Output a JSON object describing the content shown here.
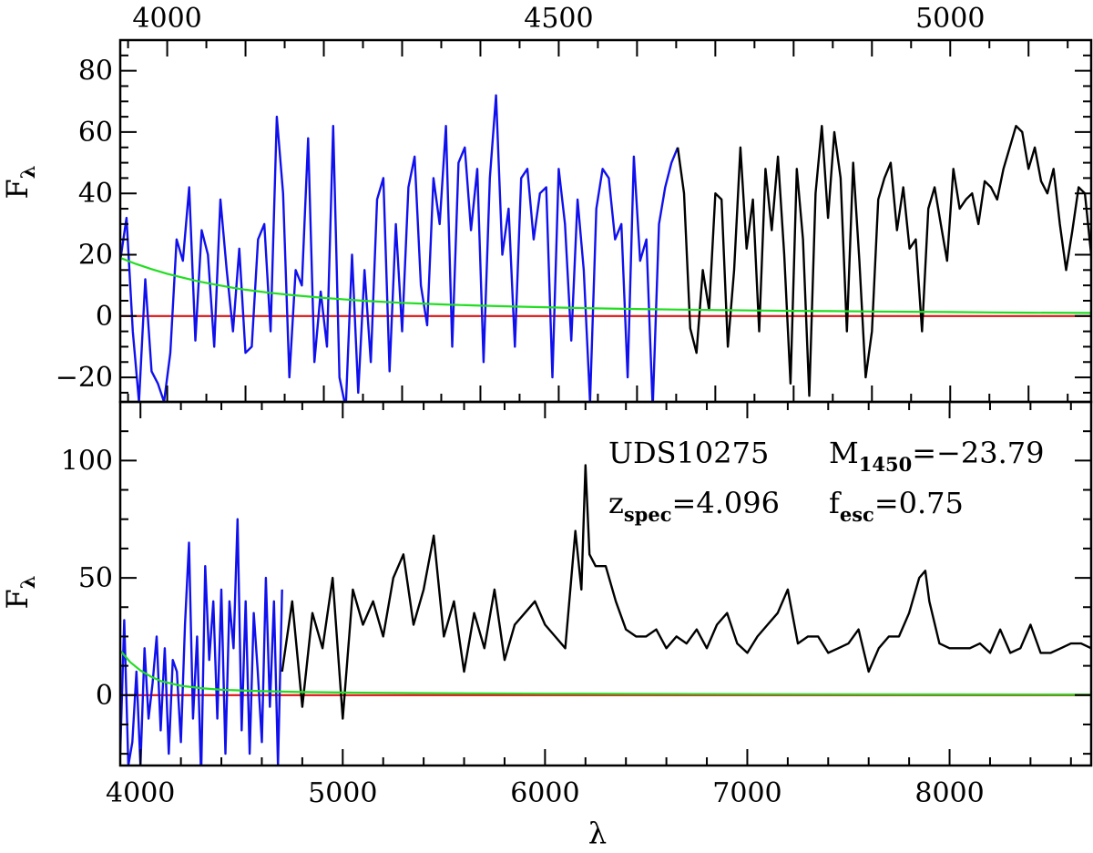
{
  "chart_data": [
    {
      "type": "line",
      "panel": "top",
      "ylabel": "F",
      "ylabel_sub": "λ",
      "xlim": [
        3940,
        5180
      ],
      "ylim": [
        -28,
        90
      ],
      "top_axis_ticks": [
        4000,
        4500,
        5000
      ],
      "y_ticks": [
        -20,
        0,
        20,
        40,
        60,
        80
      ],
      "y_tick_labels": [
        "−20",
        "0",
        "20",
        "40",
        "60",
        "80"
      ],
      "colors": {
        "blue_segment": "#1010ee",
        "black_segment": "#000000",
        "zero_line": "#e01010",
        "model_line": "#22dd22"
      },
      "series": [
        {
          "color": "blue",
          "x": [
            3940,
            3948,
            3956,
            3964,
            3972,
            3980,
            3988,
            3996,
            4004,
            4012,
            4020,
            4028,
            4036,
            4044,
            4052,
            4060,
            4068,
            4076,
            4084,
            4092,
            4100,
            4108,
            4116,
            4124,
            4132,
            4140,
            4148,
            4156,
            4164,
            4172,
            4180,
            4188,
            4196,
            4204,
            4212,
            4220,
            4228,
            4236,
            4244,
            4252,
            4260,
            4268,
            4276,
            4284,
            4292,
            4300,
            4308,
            4316,
            4324,
            4332,
            4340,
            4348,
            4356,
            4364,
            4372,
            4380,
            4388,
            4396,
            4404,
            4412,
            4420,
            4428,
            4436,
            4444,
            4452,
            4460,
            4468,
            4476,
            4484,
            4492,
            4500,
            4508,
            4516,
            4524,
            4532,
            4540,
            4548,
            4556,
            4564,
            4572,
            4580,
            4588,
            4596,
            4604,
            4612,
            4620,
            4628,
            4636,
            4644,
            4652
          ],
          "values": [
            18,
            32,
            -5,
            -28,
            12,
            -18,
            -22,
            -28,
            -12,
            25,
            18,
            42,
            -8,
            28,
            20,
            -10,
            38,
            15,
            -5,
            22,
            -12,
            -10,
            25,
            30,
            -5,
            65,
            40,
            -20,
            15,
            10,
            58,
            -15,
            8,
            -10,
            62,
            -20,
            -30,
            20,
            -25,
            15,
            -15,
            38,
            45,
            -18,
            30,
            -5,
            42,
            52,
            10,
            -3,
            45,
            30,
            62,
            -10,
            50,
            55,
            28,
            48,
            -15,
            45,
            72,
            20,
            35,
            -10,
            45,
            48,
            25,
            40,
            42,
            -20,
            48,
            30,
            -8,
            38,
            15,
            -28,
            35,
            48,
            45,
            25,
            30,
            -20,
            52,
            18,
            25,
            -30,
            30,
            42,
            50,
            55
          ]
        },
        {
          "color": "black",
          "x": [
            4652,
            4660,
            4668,
            4676,
            4684,
            4692,
            4700,
            4708,
            4716,
            4724,
            4732,
            4740,
            4748,
            4756,
            4764,
            4772,
            4780,
            4788,
            4796,
            4804,
            4812,
            4820,
            4828,
            4836,
            4844,
            4852,
            4860,
            4868,
            4876,
            4884,
            4892,
            4900,
            4908,
            4916,
            4924,
            4932,
            4940,
            4948,
            4956,
            4964,
            4972,
            4980,
            4988,
            4996,
            5004,
            5012,
            5020,
            5028,
            5036,
            5044,
            5052,
            5060,
            5068,
            5076,
            5084,
            5092,
            5100,
            5108,
            5116,
            5124,
            5132,
            5140,
            5148,
            5156,
            5164,
            5172,
            5180
          ],
          "values": [
            55,
            40,
            -4,
            -12,
            15,
            2,
            40,
            38,
            -10,
            15,
            55,
            22,
            38,
            -5,
            48,
            28,
            52,
            20,
            -22,
            48,
            25,
            -26,
            40,
            62,
            32,
            60,
            45,
            -5,
            50,
            18,
            -20,
            -5,
            38,
            45,
            50,
            28,
            42,
            22,
            25,
            -5,
            35,
            42,
            30,
            18,
            48,
            35,
            38,
            40,
            30,
            44,
            42,
            38,
            48,
            55,
            62,
            60,
            48,
            55,
            44,
            40,
            48,
            30,
            15,
            28,
            42,
            40,
            20
          ]
        },
        {
          "color": "green",
          "x": [
            3940,
            3960,
            3980,
            4000,
            4020,
            4040,
            4060,
            4080,
            4100,
            4130,
            4160,
            4200,
            4250,
            4300,
            4350,
            4400,
            4450,
            4500,
            4550,
            4600,
            4650,
            4700,
            4750,
            4800,
            4850,
            4900,
            4950,
            5000,
            5050,
            5100,
            5180
          ],
          "values": [
            19,
            17,
            15.3,
            13.8,
            12.5,
            11.3,
            10.3,
            9.4,
            8.6,
            7.6,
            6.8,
            5.9,
            5.0,
            4.3,
            3.8,
            3.4,
            3.05,
            2.75,
            2.5,
            2.3,
            2.1,
            1.95,
            1.8,
            1.7,
            1.6,
            1.5,
            1.4,
            1.3,
            1.2,
            1.1,
            1.0
          ]
        },
        {
          "color": "red",
          "x": [
            3940,
            5180
          ],
          "values": [
            0,
            0
          ]
        }
      ]
    },
    {
      "type": "line",
      "panel": "bottom",
      "xlabel": "λ",
      "ylabel": "F",
      "ylabel_sub": "λ",
      "xlim": [
        3900,
        8700
      ],
      "ylim": [
        -30,
        125
      ],
      "x_ticks": [
        4000,
        5000,
        6000,
        7000,
        8000
      ],
      "y_ticks": [
        0,
        50,
        100
      ],
      "annotations": {
        "name": "UDS10275",
        "mag_main": "M",
        "mag_sub": "1450",
        "mag_value": "=−23.79",
        "z_main": "z",
        "z_sub": "spec",
        "z_value": "=4.096",
        "f_main": "f",
        "f_sub": "esc",
        "f_value": "=0.75"
      },
      "series": [
        {
          "color": "blue",
          "x": [
            3900,
            3920,
            3940,
            3960,
            3980,
            4000,
            4020,
            4040,
            4060,
            4080,
            4100,
            4120,
            4140,
            4160,
            4180,
            4200,
            4220,
            4240,
            4260,
            4280,
            4300,
            4320,
            4340,
            4360,
            4380,
            4400,
            4420,
            4440,
            4460,
            4480,
            4500,
            4520,
            4540,
            4560,
            4580,
            4600,
            4620,
            4640,
            4660,
            4680,
            4700
          ],
          "values": [
            -25,
            32,
            -30,
            -20,
            10,
            -30,
            20,
            -10,
            5,
            25,
            -15,
            20,
            -25,
            15,
            10,
            -20,
            30,
            65,
            -10,
            25,
            -35,
            55,
            15,
            40,
            -10,
            45,
            -25,
            40,
            20,
            75,
            -15,
            40,
            -25,
            35,
            10,
            -20,
            50,
            -5,
            40,
            -30,
            45
          ]
        },
        {
          "color": "black",
          "x": [
            4700,
            4750,
            4800,
            4850,
            4900,
            4950,
            5000,
            5050,
            5100,
            5150,
            5200,
            5250,
            5300,
            5350,
            5400,
            5450,
            5500,
            5550,
            5600,
            5650,
            5700,
            5750,
            5800,
            5850,
            5900,
            5950,
            6000,
            6050,
            6100,
            6150,
            6180,
            6200,
            6220,
            6250,
            6300,
            6350,
            6400,
            6450,
            6500,
            6550,
            6600,
            6650,
            6700,
            6750,
            6800,
            6850,
            6900,
            6950,
            7000,
            7050,
            7100,
            7150,
            7200,
            7250,
            7300,
            7350,
            7400,
            7450,
            7500,
            7550,
            7600,
            7650,
            7700,
            7750,
            7800,
            7850,
            7880,
            7900,
            7950,
            8000,
            8050,
            8100,
            8150,
            8200,
            8250,
            8300,
            8350,
            8400,
            8450,
            8500,
            8550,
            8600,
            8650,
            8700
          ],
          "values": [
            10,
            40,
            -5,
            35,
            20,
            50,
            -10,
            45,
            30,
            40,
            25,
            50,
            60,
            30,
            45,
            68,
            25,
            40,
            10,
            35,
            20,
            45,
            15,
            30,
            35,
            40,
            30,
            25,
            20,
            70,
            45,
            98,
            60,
            55,
            55,
            40,
            28,
            25,
            25,
            28,
            20,
            25,
            22,
            28,
            20,
            30,
            35,
            22,
            18,
            25,
            30,
            35,
            45,
            22,
            25,
            25,
            18,
            20,
            22,
            28,
            10,
            20,
            25,
            25,
            35,
            50,
            53,
            40,
            22,
            20,
            20,
            20,
            22,
            18,
            28,
            18,
            20,
            30,
            18,
            18,
            20,
            22,
            22,
            20
          ]
        },
        {
          "color": "green",
          "x": [
            3900,
            3950,
            4000,
            4050,
            4100,
            4200,
            4300,
            4400,
            4600,
            4800,
            5000,
            5500,
            6000,
            7000,
            8000,
            8700
          ],
          "values": [
            19,
            14,
            10.5,
            8,
            6,
            4,
            3,
            2.3,
            1.7,
            1.3,
            1.1,
            0.8,
            0.6,
            0.4,
            0.3,
            0.25
          ]
        },
        {
          "color": "red",
          "x": [
            3900,
            8700
          ],
          "values": [
            0,
            0
          ]
        }
      ]
    }
  ]
}
